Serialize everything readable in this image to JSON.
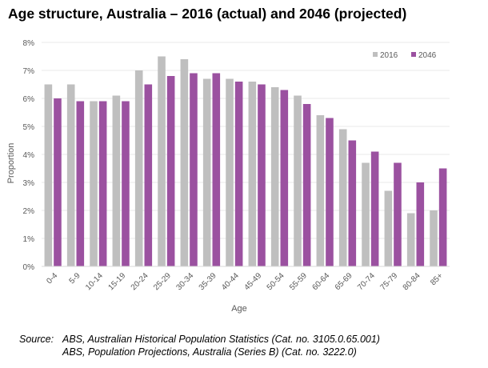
{
  "title": "Age structure, Australia – 2016 (actual) and 2046 (projected)",
  "source": {
    "label": "Source:",
    "line1": "ABS, Australian Historical Population Statistics (Cat. no. 3105.0.65.001)",
    "line2": "ABS, Population Projections, Australia (Series B) (Cat. no. 3222.0)"
  },
  "chart_data": {
    "type": "bar",
    "xlabel": "Age",
    "ylabel": "Proportion",
    "ylim": [
      0,
      8
    ],
    "yticks": [
      "0%",
      "1%",
      "2%",
      "3%",
      "4%",
      "5%",
      "6%",
      "7%",
      "8%"
    ],
    "grid": true,
    "legend_position": "top-right",
    "categories": [
      "0-4",
      "5-9",
      "10-14",
      "15-19",
      "20-24",
      "25-29",
      "30-34",
      "35-39",
      "40-44",
      "45-49",
      "50-54",
      "55-59",
      "60-64",
      "65-69",
      "70-74",
      "75-79",
      "80-84",
      "85+"
    ],
    "series": [
      {
        "name": "2016",
        "color": "#bfbfbf",
        "values": [
          6.5,
          6.5,
          5.9,
          6.1,
          7.0,
          7.5,
          7.4,
          6.7,
          6.7,
          6.6,
          6.4,
          6.1,
          5.4,
          4.9,
          3.7,
          2.7,
          1.9,
          2.0
        ]
      },
      {
        "name": "2046",
        "color": "#9b51a0",
        "values": [
          6.0,
          5.9,
          5.9,
          5.9,
          6.5,
          6.8,
          6.9,
          6.9,
          6.6,
          6.5,
          6.3,
          5.8,
          5.3,
          4.5,
          4.1,
          3.7,
          3.0,
          3.5
        ]
      }
    ]
  }
}
